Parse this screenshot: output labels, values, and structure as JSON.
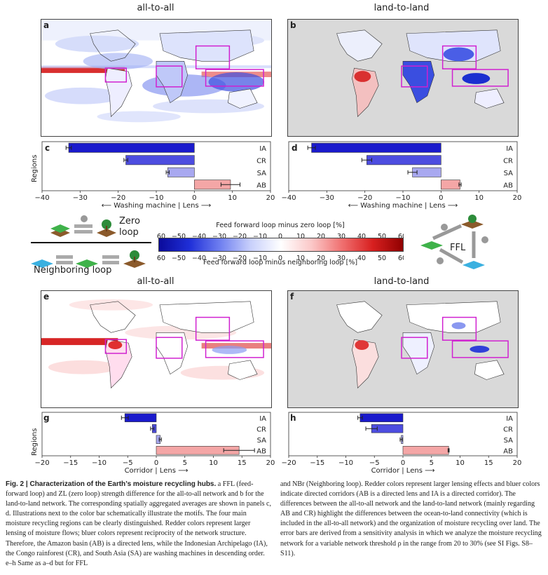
{
  "columns": {
    "left": "all-to-all",
    "right": "land-to-land"
  },
  "panels": {
    "a": "a",
    "b": "b",
    "c": "c",
    "d": "d",
    "e": "e",
    "f": "f",
    "g": "g",
    "h": "h"
  },
  "regions_axis_label": "Regions",
  "xlabel_top": "⟵ Washing machine | Lens ⟶",
  "xlabel_bottom": "Corridor | Lens ⟶",
  "legend": {
    "zero_loop": "Zero\nloop",
    "neighboring_loop": "Neighboring loop",
    "ffl": "FFL"
  },
  "colorbar": {
    "top_label": "Feed forward loop minus zero loop [%]",
    "bottom_label": "Feed forward loop minus neighboring loop [%]",
    "ticks": [
      -60,
      -50,
      -40,
      -30,
      -20,
      -10,
      0,
      10,
      20,
      30,
      40,
      50,
      60
    ]
  },
  "chart_data": [
    {
      "type": "bar",
      "panel": "c",
      "orientation": "horizontal",
      "categories": [
        "IA",
        "CR",
        "SA",
        "AB"
      ],
      "values": [
        -33,
        -18,
        -7,
        9.5
      ],
      "errors": [
        0.7,
        0.5,
        0.4,
        2.5
      ],
      "xlim": [
        -40,
        20
      ],
      "xticks": [
        -40,
        -30,
        -20,
        -10,
        0,
        10,
        20
      ],
      "xlabel": "⟵ Washing machine | Lens ⟶"
    },
    {
      "type": "bar",
      "panel": "d",
      "orientation": "horizontal",
      "categories": [
        "IA",
        "CR",
        "SA",
        "AB"
      ],
      "values": [
        -34,
        -19.5,
        -7.5,
        5
      ],
      "errors": [
        1.0,
        1.3,
        1.2,
        0.3
      ],
      "xlim": [
        -40,
        20
      ],
      "xticks": [
        -40,
        -30,
        -20,
        -10,
        0,
        10,
        20
      ],
      "xlabel": "⟵ Washing machine | Lens ⟶"
    },
    {
      "type": "bar",
      "panel": "g",
      "orientation": "horizontal",
      "categories": [
        "IA",
        "CR",
        "SA",
        "AB"
      ],
      "values": [
        -5.5,
        -0.7,
        0.7,
        14.5
      ],
      "errors": [
        0.6,
        0.3,
        0.2,
        2.7
      ],
      "xlim": [
        -20,
        20
      ],
      "xticks": [
        -20,
        -15,
        -10,
        -5,
        0,
        5,
        10,
        15,
        20
      ],
      "xlabel": "Corridor | Lens ⟶"
    },
    {
      "type": "bar",
      "panel": "h",
      "orientation": "horizontal",
      "categories": [
        "IA",
        "CR",
        "SA",
        "AB"
      ],
      "values": [
        -7.5,
        -5.5,
        -0.3,
        8
      ],
      "errors": [
        0.4,
        1.0,
        0.2,
        0.1
      ],
      "xlim": [
        -20,
        20
      ],
      "xticks": [
        -20,
        -15,
        -10,
        -5,
        0,
        5,
        10,
        15,
        20
      ],
      "xlabel": "Corridor | Lens ⟶"
    }
  ],
  "colors": {
    "bar_ia": "#1a1acc",
    "bar_cr": "#4d4de0",
    "bar_sa": "#a8a8f0",
    "bar_ab": "#f4a6a6",
    "ocean": "#ffffff",
    "land_masked": "#d9d9d9",
    "box": "#d020d0"
  },
  "caption": {
    "lead": "Fig. 2 | Characterization of the Earth’s moisture recycling hubs.",
    "col1": " a FFL (feed-forward loop) and ZL (zero loop) strength difference for the all-to-all network and b for the land-to-land network. The corresponding spatially aggregated averages are shown in panels c, d. Illustrations next to the color bar schematically illustrate the motifs. The four main moisture recycling regions can be clearly distinguished. Redder colors represent larger lensing of moisture flows; bluer colors represent reciprocity of the network structure. Therefore, the Amazon basin (AB) is a directed lens, while the Indonesian Archipelago (IA), the Congo rainforest (CR), and South Asia (SA) are washing machines in descending order. e–h Same as a–d but for FFL",
    "col2": "and NBr (Neighboring loop). Redder colors represent larger lensing effects and bluer colors indicate directed corridors (AB is a directed lens and IA is a directed corridor). The differences between the all-to-all network and the land-to-land network (mainly regarding AB and CR) highlight the differences between the ocean-to-land connectivity (which is included in the all-to-all network) and the organization of moisture recycling over land. The error bars are derived from a sensitivity analysis in which we analyze the moisture recycling network for a variable network threshold ρ in the range from 20 to 30% (see SI Figs. S8–S11)."
  }
}
